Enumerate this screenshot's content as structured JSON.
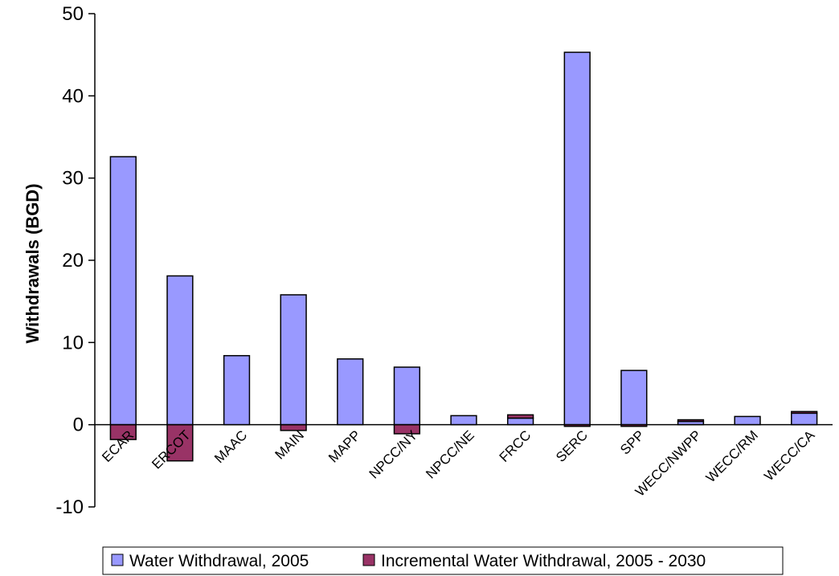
{
  "chart_data": {
    "type": "bar",
    "stacked": true,
    "ylabel": "Withdrawals (BGD)",
    "xlabel": "",
    "ylim": [
      -10,
      50
    ],
    "yticks": [
      -10,
      0,
      10,
      20,
      30,
      40,
      50
    ],
    "grid": false,
    "legend_position": "bottom",
    "categories": [
      "ECAR",
      "ERCOT",
      "MAAC",
      "MAIN",
      "MAPP",
      "NPCC/NY",
      "NPCC/NE",
      "FRCC",
      "SERC",
      "SPP",
      "WECC/NWPP",
      "WECC/RM",
      "WECC/CA"
    ],
    "series": [
      {
        "name": "Water Withdrawal, 2005",
        "color": "#9999ff",
        "values": [
          32.6,
          18.1,
          8.4,
          15.8,
          8.0,
          7.0,
          1.1,
          0.8,
          45.3,
          6.6,
          0.4,
          1.0,
          1.4
        ]
      },
      {
        "name": "Incremental Water Withdrawal, 2005 - 2030",
        "color": "#993366",
        "values": [
          -1.8,
          -4.4,
          0.0,
          -0.7,
          0.0,
          -1.1,
          0.0,
          0.4,
          -0.2,
          -0.2,
          0.2,
          0.0,
          0.2
        ]
      }
    ]
  }
}
